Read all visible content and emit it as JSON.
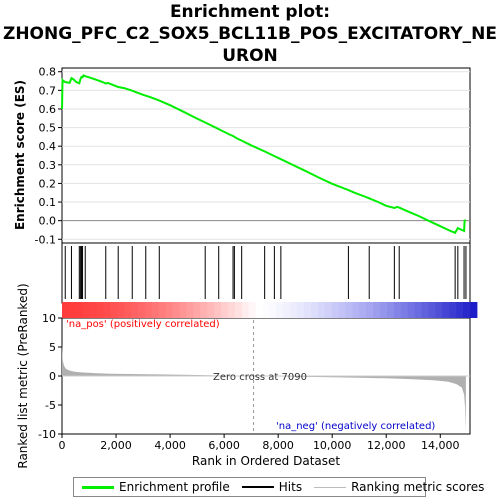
{
  "title_line1": "Enrichment plot:",
  "title_line2": "ZHONG_PFC_C2_SOX5_BCL11B_POS_EXCITATORY_NE",
  "title_line3": "URON",
  "colors": {
    "enrichment_line": "#00ee00",
    "hits": "#000000",
    "metric_fill": "#b0b0b0",
    "pos_label": "#ff0000",
    "neg_label": "#0000cc",
    "zero_line": "#888888"
  },
  "legend": {
    "enrichment_profile": "Enrichment profile",
    "hits": "Hits",
    "ranking_metric": "Ranking metric scores"
  },
  "chart_data": [
    {
      "type": "line",
      "ylabel": "Enrichment score (ES)",
      "ylim": [
        -0.12,
        0.82
      ],
      "xlim": [
        0,
        15100
      ],
      "yticks": [
        "-0.1",
        "0.0",
        "0.1",
        "0.2",
        "0.3",
        "0.4",
        "0.5",
        "0.6",
        "0.7",
        "0.8"
      ],
      "ytick_values": [
        -0.1,
        0.0,
        0.1,
        0.2,
        0.3,
        0.4,
        0.5,
        0.6,
        0.7,
        0.8
      ],
      "grid": "horizontal",
      "series": [
        {
          "x": [
            0,
            20,
            60,
            120,
            280,
            350,
            420,
            520,
            640,
            680,
            720,
            760,
            800,
            860,
            960,
            1100,
            1300,
            1500,
            1620,
            1700,
            1900,
            2080,
            2300,
            2600,
            2700,
            3000,
            3100,
            3300,
            3600,
            4000,
            4500,
            5000,
            5300,
            5800,
            6200,
            6330,
            6500,
            6650,
            7000,
            7500,
            7860,
            8100,
            8500,
            9000,
            9500,
            10000,
            10500,
            10600,
            10800,
            11200,
            11370,
            11700,
            12000,
            12300,
            12400,
            12480,
            12800,
            13200,
            13600,
            14000,
            14300,
            14550,
            14650,
            14800,
            14880,
            14900,
            14950
          ],
          "values": [
            0.6,
            0.755,
            0.75,
            0.745,
            0.74,
            0.765,
            0.76,
            0.745,
            0.738,
            0.76,
            0.772,
            0.77,
            0.78,
            0.776,
            0.772,
            0.765,
            0.755,
            0.745,
            0.737,
            0.74,
            0.728,
            0.718,
            0.712,
            0.698,
            0.692,
            0.676,
            0.671,
            0.662,
            0.645,
            0.62,
            0.585,
            0.548,
            0.527,
            0.492,
            0.463,
            0.455,
            0.44,
            0.43,
            0.405,
            0.372,
            0.347,
            0.33,
            0.302,
            0.268,
            0.232,
            0.198,
            0.17,
            0.164,
            0.152,
            0.13,
            0.12,
            0.1,
            0.08,
            0.068,
            0.074,
            0.07,
            0.05,
            0.025,
            -0.003,
            -0.03,
            -0.05,
            -0.065,
            -0.04,
            -0.05,
            -0.055,
            0.0,
            0.003
          ]
        }
      ],
      "hits": [
        120,
        350,
        640,
        680,
        720,
        760,
        860,
        1620,
        2080,
        2600,
        3100,
        3600,
        5300,
        5800,
        6330,
        6380,
        6650,
        7500,
        7860,
        8100,
        10600,
        11370,
        12300,
        12480,
        14550,
        14650,
        14880,
        14950
      ]
    },
    {
      "type": "area",
      "xlabel": "Rank in Ordered Dataset",
      "ylabel": "Ranked list metric (PreRanked)",
      "ylim": [
        -10,
        10
      ],
      "xlim": [
        0,
        15100
      ],
      "xticks": [
        "0",
        "2,000",
        "4,000",
        "6,000",
        "8,000",
        "10,000",
        "12,000",
        "14,000"
      ],
      "xtick_values": [
        0,
        2000,
        4000,
        6000,
        8000,
        10000,
        12000,
        14000
      ],
      "yticks": [
        "10",
        "5",
        "0",
        "-5",
        "-10"
      ],
      "ytick_values": [
        10,
        5,
        0,
        -5,
        -10
      ],
      "x": [
        0,
        30,
        80,
        150,
        300,
        500,
        800,
        1200,
        1800,
        2500,
        3500,
        4500,
        5500,
        6300,
        7090,
        8000,
        9000,
        10000,
        11000,
        12000,
        13000,
        13800,
        14300,
        14600,
        14800,
        14880,
        14920,
        14950
      ],
      "values": [
        5.5,
        2.6,
        1.7,
        1.2,
        0.9,
        0.7,
        0.6,
        0.5,
        0.4,
        0.35,
        0.28,
        0.2,
        0.12,
        0.06,
        0.0,
        -0.08,
        -0.15,
        -0.22,
        -0.3,
        -0.4,
        -0.55,
        -0.75,
        -1.0,
        -1.4,
        -2.0,
        -3.2,
        -5.5,
        -9.5
      ],
      "annotations": {
        "pos": "'na_pos' (positively correlated)",
        "neg": "'na_neg' (negatively correlated)",
        "zero": "Zero cross at 7090",
        "zero_x": 7090
      }
    }
  ]
}
